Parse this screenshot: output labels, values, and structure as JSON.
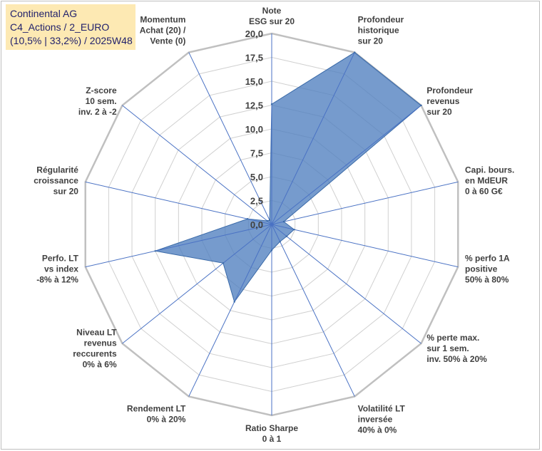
{
  "title_box": {
    "line1": "Continental AG",
    "line2": "C4_Actions / 2_EURO",
    "line3": "(10,5% | 33,2%) / 2025W48"
  },
  "colors": {
    "fill": "#4f7fbf",
    "fill_opacity": "0.78",
    "outline": "#3a6aa8",
    "grid": "#d0d0d0",
    "outer_ring": "#c0c0c0",
    "spokes": "#4a72c4",
    "title_bg": "#fde9b3"
  },
  "chart_data": {
    "type": "radar",
    "rmin": 0,
    "rmax": 20,
    "tick_step": 2.5,
    "tick_labels": [
      "0,0",
      "2,5",
      "5,0",
      "7,5",
      "10,0",
      "12,5",
      "15,0",
      "17,5",
      "20,0"
    ],
    "axes": [
      {
        "label": [
          "Note",
          "ESG sur 20"
        ],
        "value": 12.6
      },
      {
        "label": [
          "Profondeur",
          "historique",
          "sur 20"
        ],
        "value": 20.0
      },
      {
        "label": [
          "Profondeur",
          "revenus",
          "sur 20"
        ],
        "value": 20.0
      },
      {
        "label": [
          "Capi. bours.",
          "en MdEUR",
          "0 à 60 G€"
        ],
        "value": 1.3
      },
      {
        "label": [
          "% perfo 1A",
          "positive",
          "50% à 80%"
        ],
        "value": 2.4
      },
      {
        "label": [
          "% perte max.",
          "sur 1 sem.",
          "inv. 50% à 20%"
        ],
        "value": 2.0
      },
      {
        "label": [
          "Volatilité LT",
          "inversée",
          "40% à 0%"
        ],
        "value": 2.0
      },
      {
        "label": [
          "Ratio Sharpe",
          "0 à 1"
        ],
        "value": 2.7
      },
      {
        "label": [
          "Rendement LT",
          "0% à 20%"
        ],
        "value": 9.0
      },
      {
        "label": [
          "Niveau LT",
          "revenus",
          "reccurents",
          "0% à 6%"
        ],
        "value": 6.5
      },
      {
        "label": [
          "Perfo. LT",
          "vs index",
          "-8% à 12%"
        ],
        "value": 12.5
      },
      {
        "label": [
          "Régularité",
          "croissance",
          "sur 20"
        ],
        "value": 2.6
      },
      {
        "label": [
          "Z-score",
          "10 sem.",
          "inv. 2 à -2"
        ],
        "value": 0.6
      },
      {
        "label": [
          "Momentum",
          "Achat (20) /",
          "Vente (0)"
        ],
        "value": 0.5
      }
    ]
  }
}
